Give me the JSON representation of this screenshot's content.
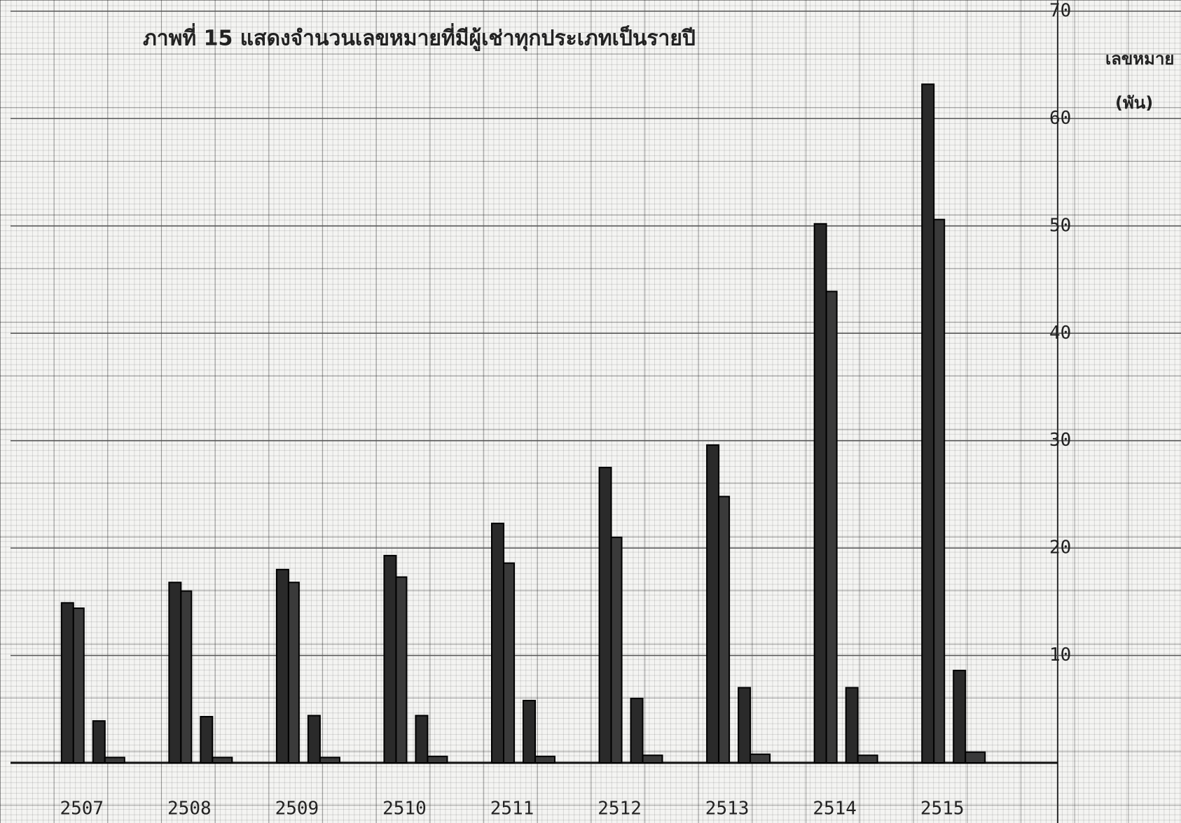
{
  "chart_data": {
    "type": "bar",
    "title": "ภาพที่ 15  แสดงจำนวนเลขหมายที่มีผู้เช่าทุกประเภทเป็นรายปี",
    "ylabel": [
      "เลขหมาย",
      "(พัน)"
    ],
    "categories": [
      "2507",
      "2508",
      "2509",
      "2510",
      "2511",
      "2512",
      "2513",
      "2514",
      "2515"
    ],
    "series": [
      {
        "color": "#2a2a2a",
        "values": [
          14.9,
          16.8,
          18.0,
          19.3,
          22.3,
          27.5,
          29.6,
          50.2,
          63.2
        ]
      },
      {
        "color": "#3a3a3a",
        "values": [
          14.4,
          16.0,
          16.8,
          17.3,
          18.6,
          21.0,
          24.8,
          43.9,
          50.6
        ]
      },
      {
        "color": "#2a2a2a",
        "values": [
          3.9,
          4.3,
          4.4,
          4.4,
          5.8,
          6.0,
          7.0,
          7.0,
          8.6
        ]
      },
      {
        "color": "#3a3a3a",
        "values": [
          0.5,
          0.5,
          0.5,
          0.6,
          0.6,
          0.7,
          0.8,
          0.7,
          1.0
        ]
      }
    ],
    "ylim": [
      0,
      70
    ],
    "yticks": [
      10,
      20,
      30,
      40,
      50,
      60,
      70
    ],
    "grid": true
  }
}
